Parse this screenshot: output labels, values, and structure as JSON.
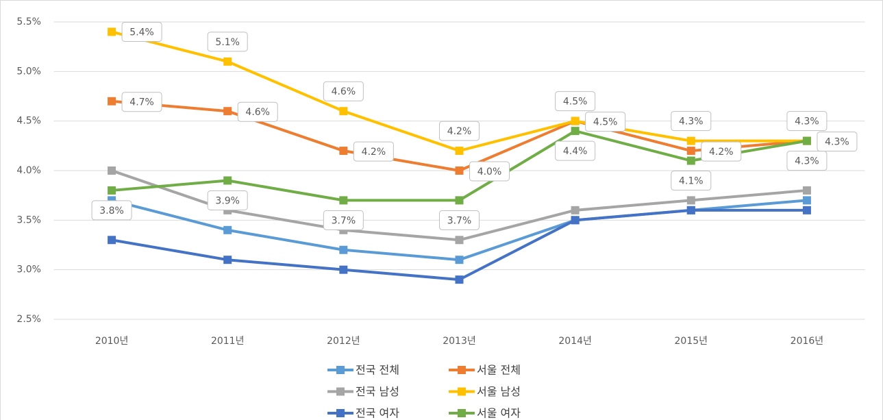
{
  "chart_data": {
    "type": "line",
    "categories": [
      "2010년",
      "2011년",
      "2012년",
      "2013년",
      "2014년",
      "2015년",
      "2016년"
    ],
    "ylim": [
      2.5,
      5.5
    ],
    "yticks": [
      {
        "value": 2.5,
        "label": "2.5%"
      },
      {
        "value": 3.0,
        "label": "3.0%"
      },
      {
        "value": 3.5,
        "label": "3.5%"
      },
      {
        "value": 4.0,
        "label": "4.0%"
      },
      {
        "value": 4.5,
        "label": "4.5%"
      },
      {
        "value": 5.0,
        "label": "5.0%"
      },
      {
        "value": 5.5,
        "label": "5.5%"
      }
    ],
    "grid": true,
    "legend": "bottom",
    "series": [
      {
        "name": "전국 전체",
        "color": "#5b9bd5",
        "values": [
          3.7,
          3.4,
          3.2,
          3.1,
          3.5,
          3.6,
          3.7
        ]
      },
      {
        "name": "서울 전체",
        "color": "#ed7d31",
        "values": [
          4.7,
          4.6,
          4.2,
          4.0,
          4.5,
          4.2,
          4.3
        ],
        "value_labels": [
          "4.7%",
          "4.6%",
          "4.2%",
          "4.0%",
          "4.5%",
          "4.2%",
          "4.3%"
        ]
      },
      {
        "name": "전국 남성",
        "color": "#a5a5a5",
        "values": [
          4.0,
          3.6,
          3.4,
          3.3,
          3.6,
          3.7,
          3.8
        ]
      },
      {
        "name": "서울 남성",
        "color": "#ffc000",
        "values": [
          5.4,
          5.1,
          4.6,
          4.2,
          4.5,
          4.3,
          4.3
        ],
        "value_labels": [
          "5.4%",
          "5.1%",
          "4.6%",
          "4.2%",
          "4.5%",
          "4.3%",
          "4.3%"
        ]
      },
      {
        "name": "전국 여자",
        "color": "#4472c4",
        "values": [
          3.3,
          3.1,
          3.0,
          2.9,
          3.5,
          3.6,
          3.6
        ]
      },
      {
        "name": "서울 여자",
        "color": "#70ad47",
        "values": [
          3.8,
          3.9,
          3.7,
          3.7,
          4.4,
          4.1,
          4.3
        ],
        "value_labels": [
          "3.8%",
          "3.9%",
          "3.7%",
          "3.7%",
          "4.4%",
          "4.1%",
          "4.3%"
        ]
      }
    ]
  }
}
